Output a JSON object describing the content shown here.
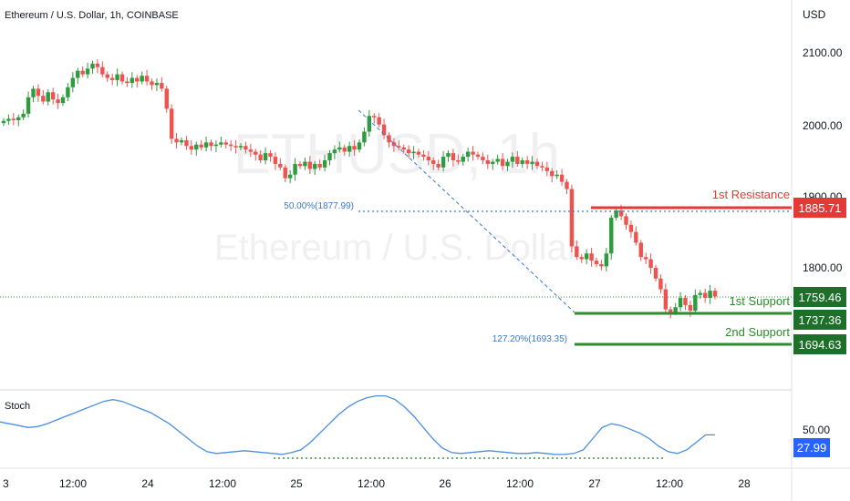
{
  "header": {
    "title": "Ethereum / U.S. Dollar, 1h, COINBASE",
    "currency": "USD"
  },
  "watermark": {
    "symbol": "ETHUSD, 1h",
    "name": "Ethereum / U.S. Dollar"
  },
  "price_axis": {
    "ticks": [
      "2100.00",
      "2000.00",
      "1900.00",
      "1800.00"
    ]
  },
  "time_axis": {
    "ticks": [
      "3",
      "12:00",
      "24",
      "12:00",
      "25",
      "12:00",
      "26",
      "12:00",
      "27",
      "12:00",
      "28"
    ]
  },
  "levels": {
    "resistance_label": "1st Resistance",
    "resistance_value": "1885.71",
    "support1_label": "1st Support",
    "support1_value": "1737.36",
    "support2_label": "2nd Support",
    "support2_value": "1694.63",
    "last_price": "1759.46"
  },
  "fib": {
    "level_50": "50.00%(1877.99)",
    "level_127": "127.20%(1693.35)"
  },
  "stoch": {
    "label": "Stoch",
    "tick": "50.00",
    "value": "27.99"
  },
  "colors": {
    "up": "#26a69a",
    "up_body": "#2e9b3f",
    "down": "#ef5350",
    "stoch_line": "#4a8fe0",
    "support": "#2e8b2e",
    "resistance": "#e53935",
    "fib": "#3b78c9"
  },
  "chart_data": {
    "type": "candlestick",
    "title": "Ethereum / U.S. Dollar, 1h, COINBASE",
    "ylim": [
      1660,
      2140
    ],
    "candles_close": [
      2005,
      2008,
      2006,
      2010,
      2015,
      2038,
      2050,
      2040,
      2032,
      2045,
      2035,
      2030,
      2038,
      2052,
      2065,
      2075,
      2070,
      2078,
      2085,
      2080,
      2070,
      2065,
      2062,
      2070,
      2060,
      2058,
      2065,
      2060,
      2068,
      2060,
      2055,
      2058,
      2050,
      2022,
      1980,
      1975,
      1978,
      1970,
      1965,
      1972,
      1968,
      1975,
      1970,
      1972,
      1975,
      1972,
      1970,
      1968,
      1970,
      1965,
      1962,
      1958,
      1950,
      1960,
      1955,
      1945,
      1940,
      1925,
      1930,
      1945,
      1942,
      1948,
      1938,
      1945,
      1940,
      1950,
      1960,
      1965,
      1968,
      1962,
      1970,
      1965,
      1975,
      1990,
      2012,
      2010,
      2000,
      1985,
      1975,
      1970,
      1968,
      1965,
      1960,
      1962,
      1958,
      1955,
      1950,
      1945,
      1940,
      1955,
      1960,
      1950,
      1948,
      1955,
      1962,
      1958,
      1955,
      1950,
      1945,
      1948,
      1952,
      1942,
      1948,
      1955,
      1945,
      1950,
      1945,
      1948,
      1942,
      1940,
      1935,
      1928,
      1930,
      1920,
      1910,
      1830,
      1815,
      1812,
      1820,
      1810,
      1805,
      1802,
      1820,
      1870,
      1880,
      1872,
      1860,
      1850,
      1835,
      1815,
      1812,
      1800,
      1785,
      1770,
      1742,
      1738,
      1745,
      1758,
      1748,
      1740,
      1762,
      1765,
      1758,
      1768,
      1760
    ],
    "candles_open": [
      2002,
      2005,
      2008,
      2006,
      2010,
      2015,
      2038,
      2050,
      2040,
      2032,
      2045,
      2035,
      2030,
      2038,
      2052,
      2065,
      2075,
      2070,
      2078,
      2085,
      2080,
      2070,
      2065,
      2062,
      2070,
      2060,
      2058,
      2065,
      2060,
      2068,
      2060,
      2055,
      2058,
      2050,
      2022,
      1980,
      1975,
      1978,
      1970,
      1965,
      1972,
      1968,
      1975,
      1970,
      1972,
      1975,
      1972,
      1970,
      1968,
      1970,
      1965,
      1962,
      1958,
      1950,
      1960,
      1955,
      1945,
      1940,
      1925,
      1930,
      1945,
      1942,
      1948,
      1938,
      1945,
      1940,
      1950,
      1960,
      1965,
      1968,
      1962,
      1970,
      1965,
      1975,
      1990,
      2012,
      2010,
      2000,
      1985,
      1975,
      1970,
      1968,
      1965,
      1960,
      1962,
      1958,
      1955,
      1950,
      1945,
      1940,
      1955,
      1960,
      1950,
      1948,
      1955,
      1962,
      1958,
      1955,
      1950,
      1945,
      1948,
      1952,
      1942,
      1948,
      1955,
      1945,
      1950,
      1945,
      1948,
      1942,
      1940,
      1935,
      1928,
      1930,
      1920,
      1910,
      1830,
      1815,
      1812,
      1820,
      1810,
      1805,
      1802,
      1820,
      1870,
      1880,
      1872,
      1860,
      1850,
      1835,
      1815,
      1812,
      1800,
      1785,
      1770,
      1742,
      1738,
      1745,
      1758,
      1748,
      1740,
      1762,
      1765,
      1758,
      1768
    ],
    "stoch_values": [
      42,
      40,
      38,
      36,
      37,
      40,
      44,
      48,
      52,
      56,
      60,
      64,
      66,
      64,
      60,
      56,
      52,
      46,
      40,
      32,
      24,
      16,
      10,
      8,
      9,
      10,
      11,
      10,
      9,
      8,
      7,
      9,
      12,
      20,
      30,
      40,
      50,
      58,
      64,
      68,
      70,
      70,
      66,
      58,
      48,
      36,
      24,
      14,
      9,
      8,
      9,
      10,
      11,
      10,
      9,
      8,
      8,
      9,
      8,
      7,
      7,
      8,
      12,
      24,
      36,
      40,
      38,
      34,
      30,
      24,
      16,
      10,
      8,
      12,
      20,
      28,
      28
    ],
    "series": [
      {
        "name": "1st Resistance",
        "values": [
          1885.71
        ]
      },
      {
        "name": "1st Support",
        "values": [
          1737.36
        ]
      },
      {
        "name": "2nd Support",
        "values": [
          1694.63
        ]
      }
    ]
  }
}
